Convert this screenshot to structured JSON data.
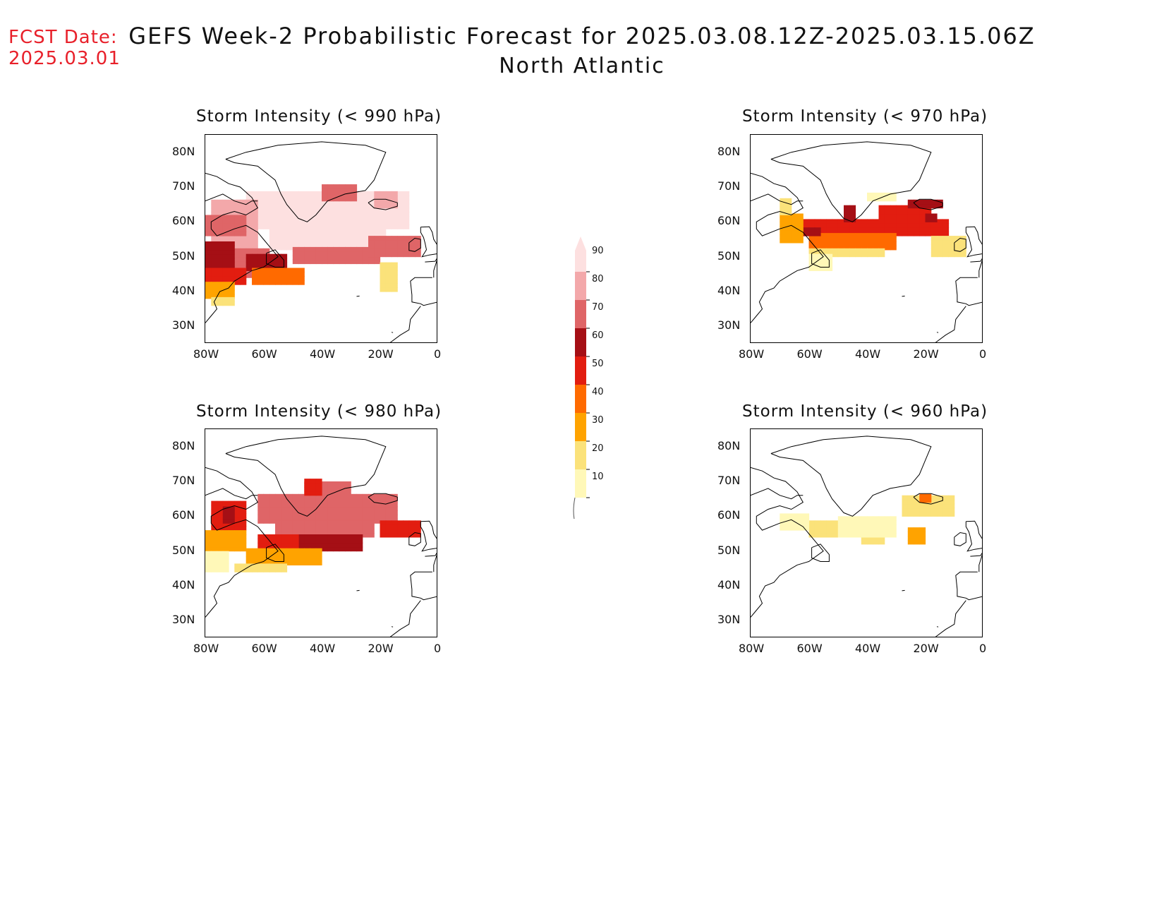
{
  "header": {
    "fcst_label": "FCST Date:",
    "fcst_date": "2025.03.01",
    "title": "GEFS Week-2 Probabilistic Forecast for 2025.03.08.12Z-2025.03.15.06Z",
    "subtitle": "North Atlantic"
  },
  "axes": {
    "lat_labels": [
      "80N",
      "70N",
      "60N",
      "50N",
      "40N",
      "30N"
    ],
    "lon_labels": [
      "80W",
      "60W",
      "40W",
      "20W",
      "0"
    ]
  },
  "panels": [
    {
      "id": "p990",
      "title": "Storm Intensity (< 990 hPa)",
      "level": "high"
    },
    {
      "id": "p970",
      "title": "Storm Intensity (< 970 hPa)",
      "level": "mid"
    },
    {
      "id": "p980",
      "title": "Storm Intensity (< 980 hPa)",
      "level": "highmid"
    },
    {
      "id": "p960",
      "title": "Storm Intensity (< 960 hPa)",
      "level": "low"
    }
  ],
  "legend": {
    "labels": [
      "90",
      "80",
      "70",
      "60",
      "50",
      "40",
      "30",
      "20",
      "10"
    ],
    "colors": [
      "#fde0e0",
      "#f3a8aa",
      "#df6567",
      "#a50f15",
      "#e21d10",
      "#ff6a00",
      "#ffa300",
      "#fbe27a",
      "#fff8b8"
    ]
  }
}
